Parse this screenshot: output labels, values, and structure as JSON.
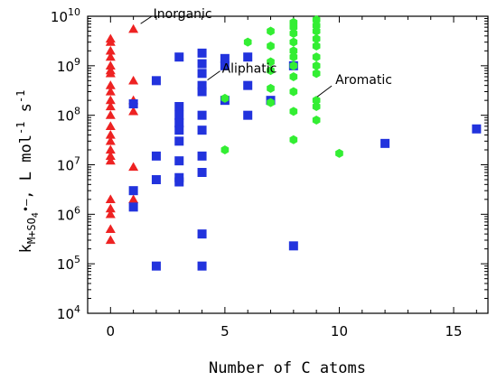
{
  "chart_data": {
    "type": "scatter",
    "xlabel": "Number of C atoms",
    "ylabel_parts": {
      "k": "k",
      "sub": "M+SO",
      "sub4": "4",
      "dot": "•",
      "minus": "–",
      "units": ", L mol",
      "unitsExp": "-1",
      "s": " s",
      "sExp": "-1"
    },
    "xlim": [
      -1,
      16.5
    ],
    "ylim_log10": [
      4,
      10
    ],
    "y_scale": "log",
    "xticks": [
      0,
      5,
      10,
      15
    ],
    "xtick_labels": [
      "0",
      "5",
      "10",
      "15"
    ],
    "yticks_exp": [
      4,
      5,
      6,
      7,
      8,
      9,
      10
    ],
    "ytick_base": "10",
    "ytick_exp_labels": [
      "4",
      "5",
      "6",
      "7",
      "8",
      "9",
      "10"
    ],
    "annotations": [
      {
        "text": "Inorganic",
        "point": [
          1,
          5500000000
        ]
      },
      {
        "text": "Aromatic",
        "point": [
          8.8,
          200000000
        ]
      },
      {
        "text": "Aliphatic",
        "point": [
          4,
          400000000
        ]
      }
    ],
    "series": [
      {
        "color": "#ee2222",
        "marker": "triangle",
        "points": [
          [
            0,
            3500000000
          ],
          [
            0,
            3000000000
          ],
          [
            0,
            2000000000
          ],
          [
            0,
            1500000000
          ],
          [
            0,
            1000000000
          ],
          [
            0,
            800000000
          ],
          [
            0,
            700000000
          ],
          [
            0,
            400000000
          ],
          [
            0,
            300000000
          ],
          [
            0,
            200000000
          ],
          [
            0,
            150000000
          ],
          [
            0,
            100000000
          ],
          [
            0,
            60000000
          ],
          [
            0,
            40000000
          ],
          [
            0,
            30000000
          ],
          [
            0,
            20000000
          ],
          [
            0,
            15000000
          ],
          [
            0,
            12000000
          ],
          [
            0,
            2000000
          ],
          [
            0,
            1300000
          ],
          [
            0,
            1000000
          ],
          [
            0,
            500000
          ],
          [
            0,
            300000
          ],
          [
            1,
            5500000000
          ],
          [
            1,
            500000000
          ],
          [
            1,
            200000000
          ],
          [
            1,
            120000000
          ],
          [
            1,
            9000000
          ],
          [
            1,
            2000000
          ]
        ]
      },
      {
        "color": "#2233dd",
        "marker": "square",
        "points": [
          [
            1,
            170000000
          ],
          [
            1,
            3000000
          ],
          [
            1,
            1400000
          ],
          [
            2,
            500000000
          ],
          [
            2,
            15000000
          ],
          [
            2,
            5000000
          ],
          [
            2,
            90000
          ],
          [
            3,
            1500000000
          ],
          [
            3,
            150000000
          ],
          [
            3,
            100000000
          ],
          [
            3,
            70000000
          ],
          [
            3,
            50000000
          ],
          [
            3,
            30000000
          ],
          [
            3,
            12000000
          ],
          [
            3,
            5500000
          ],
          [
            3,
            4500000
          ],
          [
            4,
            1800000000
          ],
          [
            4,
            1100000000
          ],
          [
            4,
            700000000
          ],
          [
            4,
            400000000
          ],
          [
            4,
            300000000
          ],
          [
            4,
            100000000
          ],
          [
            4,
            50000000
          ],
          [
            4,
            15000000
          ],
          [
            4,
            7000000
          ],
          [
            4,
            400000
          ],
          [
            4,
            90000
          ],
          [
            5,
            1400000000
          ],
          [
            5,
            1000000000
          ],
          [
            5,
            200000000
          ],
          [
            6,
            1500000000
          ],
          [
            6,
            400000000
          ],
          [
            6,
            100000000
          ],
          [
            7,
            200000000
          ],
          [
            8,
            1000000000
          ],
          [
            8,
            230000
          ],
          [
            12,
            27000000
          ],
          [
            16,
            53000000
          ]
        ]
      },
      {
        "color": "#33ee33",
        "marker": "hexagon",
        "points": [
          [
            5,
            220000000
          ],
          [
            5,
            20000000
          ],
          [
            6,
            3000000000
          ],
          [
            7,
            5000000000
          ],
          [
            7,
            2500000000
          ],
          [
            7,
            1200000000
          ],
          [
            7,
            800000000
          ],
          [
            7,
            350000000
          ],
          [
            7,
            180000000
          ],
          [
            8,
            7500000000
          ],
          [
            8,
            6000000000
          ],
          [
            8,
            4500000000
          ],
          [
            8,
            3000000000
          ],
          [
            8,
            2000000000
          ],
          [
            8,
            1500000000
          ],
          [
            8,
            1000000000
          ],
          [
            8,
            600000000
          ],
          [
            8,
            300000000
          ],
          [
            8,
            120000000
          ],
          [
            8,
            32000000
          ],
          [
            9,
            8500000000
          ],
          [
            9,
            6500000000
          ],
          [
            9,
            5000000000
          ],
          [
            9,
            3500000000
          ],
          [
            9,
            2500000000
          ],
          [
            9,
            1500000000
          ],
          [
            9,
            1000000000
          ],
          [
            9,
            700000000
          ],
          [
            9,
            200000000
          ],
          [
            9,
            150000000
          ],
          [
            9,
            80000000
          ],
          [
            10,
            17000000
          ]
        ]
      }
    ]
  }
}
